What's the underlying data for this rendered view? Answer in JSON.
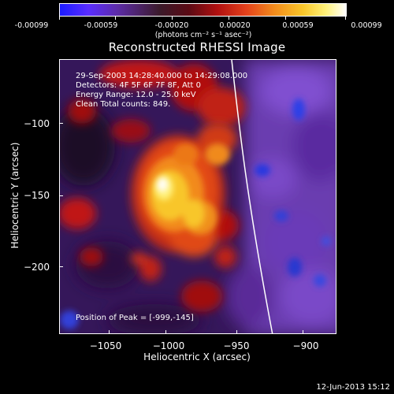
{
  "colorbar": {
    "tick_labels": [
      "-0.00099",
      "-0.00059",
      "-0.00020",
      "0.00020",
      "0.00059",
      "0.00099"
    ],
    "units": "(photons cm⁻² s⁻¹ asec⁻²)"
  },
  "title": "Reconstructed RHESSI Image",
  "info": {
    "time_range": "29-Sep-2003 14:28:40.000 to 14:29:08.000",
    "detectors": "Detectors: 4F 5F 6F 7F 8F, Att 0",
    "energy_range": "Energy Range: 12.0 - 25.0 keV",
    "clean_counts": "Clean     Total counts: 849.",
    "peak_position": "Position of Peak = [-999,-145]"
  },
  "axes": {
    "x_title": "Heliocentric X (arcsec)",
    "y_title": "Heliocentric Y (arcsec)",
    "x_ticks": [
      "−1050",
      "−1000",
      "−950",
      "−900"
    ],
    "y_ticks": [
      "−100",
      "−150",
      "−200"
    ]
  },
  "footer": {
    "date": "12-Jun-2013 15:12"
  }
}
